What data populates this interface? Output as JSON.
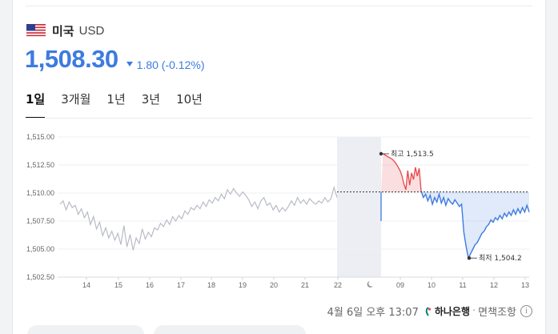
{
  "header": {
    "country": "미국",
    "currency": "USD",
    "flag_icon": "us-flag-icon"
  },
  "quote": {
    "price": "1,508.30",
    "change": "1.80 (-0.12%)",
    "direction": "down",
    "color": "#3d7be0"
  },
  "tabs": [
    {
      "label": "1일",
      "active": true
    },
    {
      "label": "3개월",
      "active": false
    },
    {
      "label": "1년",
      "active": false
    },
    {
      "label": "3년",
      "active": false
    },
    {
      "label": "10년",
      "active": false
    }
  ],
  "chart_data": {
    "type": "line",
    "y_ticks": [
      "1,515.00",
      "1,512.50",
      "1,510.00",
      "1,507.50",
      "1,505.00",
      "1,502.50"
    ],
    "ylim": [
      1502.5,
      1515.0
    ],
    "x_ticks": [
      "14",
      "15",
      "16",
      "17",
      "18",
      "19",
      "20",
      "21",
      "22",
      "09",
      "10",
      "11",
      "12",
      "13"
    ],
    "night_icon": "moon-icon",
    "reference_value": 1510.1,
    "high": {
      "label": "최고 1,513.5",
      "value": 1513.5
    },
    "low": {
      "label": "최저 1,504.2",
      "value": 1504.2
    },
    "colors": {
      "history": "#b9bcc6",
      "up": "#e8474b",
      "down": "#3d7be0",
      "market_closed_band": "#eceef4"
    },
    "series": [
      {
        "values": [
          1509.0,
          1509.3,
          1508.5,
          1509.2,
          1508.7,
          1508.9,
          1508.1,
          1508.6,
          1507.8,
          1508.3,
          1507.2,
          1507.9,
          1506.8,
          1507.4,
          1506.2,
          1506.9,
          1506.0,
          1506.6,
          1505.8,
          1506.4,
          1505.4,
          1507.1,
          1505.2,
          1506.3,
          1504.9,
          1506.0,
          1505.5,
          1506.8,
          1505.9,
          1506.5,
          1506.1,
          1506.9,
          1506.7,
          1507.3,
          1507.0,
          1507.6,
          1507.2,
          1507.9,
          1507.5,
          1508.0,
          1507.7,
          1508.4,
          1508.1,
          1508.7,
          1508.5,
          1508.9,
          1508.6,
          1509.2,
          1508.8,
          1509.4,
          1509.1,
          1509.6,
          1509.3,
          1509.9,
          1509.5,
          1510.3,
          1509.9,
          1510.4,
          1510.0,
          1509.7,
          1510.1,
          1509.8,
          1509.4,
          1508.8,
          1509.2,
          1508.6,
          1509.3,
          1509.6,
          1508.9,
          1509.1,
          1508.5,
          1508.9,
          1508.3,
          1508.7,
          1508.4,
          1508.8,
          1509.3,
          1508.9,
          1509.6,
          1509.1,
          1509.4,
          1509.0,
          1509.5,
          1509.2,
          1509.0,
          1509.3,
          1509.1,
          1509.6,
          1509.2,
          1509.5,
          1510.5,
          1509.6
        ]
      },
      {
        "values": [
          1507.5,
          1513.5,
          1513.4,
          1513.3,
          1513.2,
          1513.1,
          1513.0,
          1512.8,
          1512.6,
          1512.3,
          1512.0,
          1511.5,
          1510.8,
          1510.3,
          1512.0,
          1510.7,
          1511.8,
          1511.2,
          1512.3,
          1511.5,
          1512.2,
          1510.2
        ]
      },
      {
        "values": [
          1510.2,
          1509.6,
          1509.9,
          1509.3,
          1509.8,
          1509.0,
          1509.6,
          1509.2,
          1509.9,
          1509.1,
          1509.6,
          1508.9,
          1509.5,
          1509.2,
          1509.0,
          1509.4,
          1509.1,
          1508.8,
          1509.0,
          1506.5,
          1505.2,
          1504.2,
          1504.6,
          1505.0,
          1505.4,
          1505.6,
          1506.0,
          1506.4,
          1506.6,
          1507.0,
          1507.2,
          1507.6,
          1507.4,
          1507.8,
          1507.6,
          1508.0,
          1507.7,
          1508.2,
          1507.9,
          1508.3,
          1508.0,
          1508.5,
          1508.1,
          1508.6,
          1508.2,
          1508.7,
          1508.3,
          1508.9,
          1508.3
        ]
      }
    ]
  },
  "footer": {
    "date": "4월 6일 오후 13:07",
    "bank": "하나은행",
    "separator": "·",
    "disclaimer": "면책조항",
    "info_icon": "i"
  }
}
